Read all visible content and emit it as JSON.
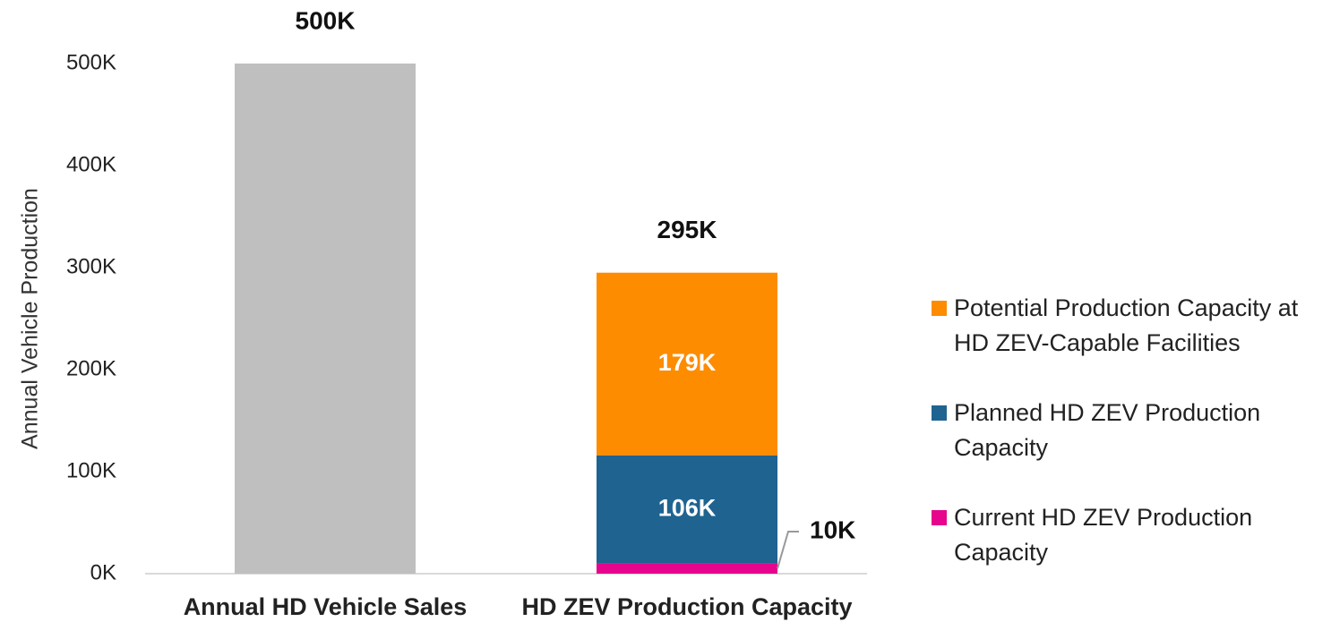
{
  "chart_data": {
    "type": "stacked_bar",
    "y_label": "Annual Vehicle Production",
    "categories": [
      "Annual HD Vehicle Sales",
      "HD ZEV Production Capacity"
    ],
    "series": [
      {
        "color": "#bfbfbf",
        "values": [
          500000,
          null
        ]
      },
      {
        "name": "Current HD ZEV Production Capacity",
        "color": "#e6058c",
        "values": [
          null,
          10000
        ],
        "value_labels": [
          null,
          "10K"
        ]
      },
      {
        "name": "Planned HD ZEV Production Capacity",
        "color": "#1f6391",
        "values": [
          null,
          106000
        ],
        "value_labels": [
          null,
          "106K"
        ]
      },
      {
        "name": "Potential Production Capacity at HD ZEV-Capable Facilities",
        "color": "#fd8c00",
        "values": [
          null,
          179000
        ],
        "value_labels": [
          null,
          "179K"
        ]
      }
    ],
    "totals": [
      500000,
      295000
    ],
    "total_labels": [
      "500K",
      "295K"
    ],
    "ylim": [
      0,
      500000
    ],
    "yticks": [
      {
        "value": 0,
        "label": "0K"
      },
      {
        "value": 100000,
        "label": "100K"
      },
      {
        "value": 200000,
        "label": "200K"
      },
      {
        "value": 300000,
        "label": "300K"
      },
      {
        "value": 400000,
        "label": "400K"
      },
      {
        "value": 500000,
        "label": "500K"
      }
    ],
    "grid": false,
    "legend": "right"
  }
}
